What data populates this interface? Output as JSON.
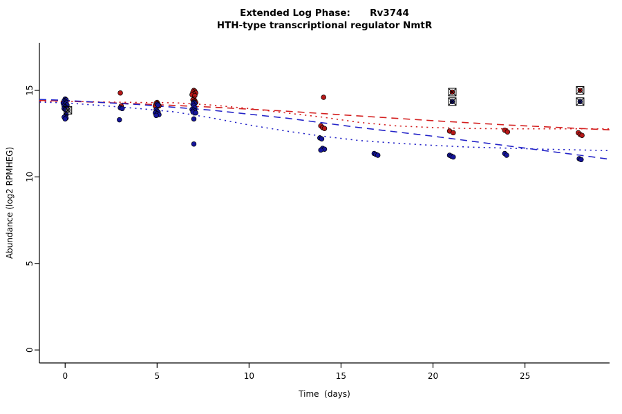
{
  "title": {
    "line1": "Extended Log Phase:      Rv3744",
    "line2": "HTH-type transcriptional regulator NmtR"
  },
  "chart_data": {
    "type": "scatter",
    "title": "Extended Log Phase:      Rv3744",
    "subtitle": "HTH-type transcriptional regulator NmtR",
    "xlabel": "Time  (days)",
    "ylabel": "Abundance  (log2 RPMHEG)",
    "xlim": [
      -1.4,
      29.6
    ],
    "ylim": [
      -0.75,
      17.75
    ],
    "xticks": [
      0,
      5,
      10,
      15,
      20,
      25
    ],
    "yticks": [
      0,
      5,
      10,
      15
    ],
    "grid": "off",
    "legend": "none",
    "series": [
      {
        "name": "red-condition",
        "color": "#b61818",
        "points": [
          [
            0.0,
            14.2
          ],
          [
            0.1,
            14.05
          ],
          [
            -0.05,
            13.95
          ],
          [
            0.05,
            13.9
          ],
          [
            3.0,
            14.85
          ],
          [
            3.05,
            14.1
          ],
          [
            5.0,
            14.3
          ],
          [
            4.95,
            14.25
          ],
          [
            5.05,
            14.2
          ],
          [
            5.0,
            14.15
          ],
          [
            5.1,
            14.1
          ],
          [
            4.9,
            14.1
          ],
          [
            7.0,
            15.0
          ],
          [
            7.05,
            14.95
          ],
          [
            6.95,
            14.9
          ],
          [
            7.1,
            14.85
          ],
          [
            7.0,
            14.8
          ],
          [
            6.9,
            14.75
          ],
          [
            7.05,
            14.7
          ],
          [
            7.0,
            14.5
          ],
          [
            6.95,
            14.45
          ],
          [
            7.05,
            14.4
          ],
          [
            7.0,
            14.35
          ],
          [
            7.1,
            14.3
          ],
          [
            14.05,
            14.6
          ],
          [
            13.9,
            12.95
          ],
          [
            14.0,
            12.85
          ],
          [
            14.1,
            12.8
          ],
          [
            20.9,
            12.65
          ],
          [
            21.1,
            12.55
          ],
          [
            23.9,
            12.7
          ],
          [
            24.05,
            12.6
          ],
          [
            27.9,
            12.55
          ],
          [
            28.0,
            12.45
          ],
          [
            28.1,
            12.4
          ]
        ]
      },
      {
        "name": "blue-condition",
        "color": "#15159b",
        "points": [
          [
            0.0,
            14.5
          ],
          [
            0.05,
            14.45
          ],
          [
            -0.05,
            14.4
          ],
          [
            0.0,
            14.35
          ],
          [
            0.05,
            14.3
          ],
          [
            -0.1,
            14.25
          ],
          [
            0.0,
            14.2
          ],
          [
            0.1,
            14.15
          ],
          [
            -0.05,
            14.1
          ],
          [
            0.0,
            14.05
          ],
          [
            0.05,
            14.0
          ],
          [
            -0.05,
            13.95
          ],
          [
            0.0,
            13.9
          ],
          [
            0.05,
            13.6
          ],
          [
            0.0,
            13.5
          ],
          [
            -0.05,
            13.45
          ],
          [
            0.05,
            13.4
          ],
          [
            0.0,
            13.35
          ],
          [
            3.0,
            14.0
          ],
          [
            3.1,
            13.95
          ],
          [
            2.95,
            13.3
          ],
          [
            5.0,
            14.2
          ],
          [
            5.05,
            14.15
          ],
          [
            4.95,
            13.9
          ],
          [
            5.0,
            13.8
          ],
          [
            5.05,
            13.75
          ],
          [
            4.9,
            13.7
          ],
          [
            5.0,
            13.65
          ],
          [
            5.1,
            13.6
          ],
          [
            4.95,
            13.55
          ],
          [
            7.0,
            14.3
          ],
          [
            7.05,
            14.25
          ],
          [
            6.95,
            14.2
          ],
          [
            7.0,
            14.1
          ],
          [
            7.05,
            14.0
          ],
          [
            6.9,
            13.9
          ],
          [
            7.0,
            13.85
          ],
          [
            7.05,
            13.8
          ],
          [
            6.95,
            13.75
          ],
          [
            7.1,
            13.7
          ],
          [
            7.0,
            13.35
          ],
          [
            7.0,
            11.9
          ],
          [
            13.85,
            12.25
          ],
          [
            13.95,
            12.2
          ],
          [
            14.0,
            11.65
          ],
          [
            14.1,
            11.6
          ],
          [
            13.9,
            11.55
          ],
          [
            16.8,
            11.35
          ],
          [
            16.9,
            11.3
          ],
          [
            17.0,
            11.25
          ],
          [
            20.9,
            11.25
          ],
          [
            21.0,
            11.2
          ],
          [
            21.1,
            11.15
          ],
          [
            23.9,
            11.35
          ],
          [
            24.0,
            11.25
          ],
          [
            27.95,
            11.05
          ],
          [
            28.05,
            11.0
          ]
        ]
      }
    ],
    "outliers": [
      {
        "x": 0.15,
        "y": 13.85,
        "color": "#666666"
      },
      {
        "x": 21.05,
        "y": 14.9,
        "color": "#b61818"
      },
      {
        "x": 21.05,
        "y": 14.35,
        "color": "#15157d"
      },
      {
        "x": 28.0,
        "y": 15.0,
        "color": "#b61818"
      },
      {
        "x": 28.0,
        "y": 14.35,
        "color": "#15157d"
      }
    ],
    "trend_lines": [
      {
        "name": "red-dashed-fit",
        "color": "#d42020",
        "style": "dashed",
        "points": [
          [
            -1.4,
            14.42
          ],
          [
            0,
            14.38
          ],
          [
            4,
            14.22
          ],
          [
            8,
            14.03
          ],
          [
            12,
            13.8
          ],
          [
            16,
            13.52
          ],
          [
            20,
            13.25
          ],
          [
            24,
            13.0
          ],
          [
            28,
            12.8
          ],
          [
            29.6,
            12.72
          ]
        ]
      },
      {
        "name": "red-dotted-fit",
        "color": "#d42020",
        "style": "dotted",
        "points": [
          [
            -1.4,
            14.38
          ],
          [
            0,
            14.37
          ],
          [
            2,
            14.33
          ],
          [
            4,
            14.3
          ],
          [
            6,
            14.28
          ],
          [
            8,
            14.15
          ],
          [
            10,
            13.95
          ],
          [
            12,
            13.7
          ],
          [
            14,
            13.45
          ],
          [
            16,
            13.15
          ],
          [
            18,
            12.95
          ],
          [
            20,
            12.85
          ],
          [
            22,
            12.8
          ],
          [
            24,
            12.78
          ],
          [
            26,
            12.78
          ],
          [
            28,
            12.78
          ],
          [
            29.6,
            12.78
          ]
        ]
      },
      {
        "name": "blue-dashed-fit",
        "color": "#2424c8",
        "style": "dashed",
        "points": [
          [
            -1.4,
            14.48
          ],
          [
            0,
            14.42
          ],
          [
            4,
            14.18
          ],
          [
            8,
            13.85
          ],
          [
            12,
            13.4
          ],
          [
            16,
            12.85
          ],
          [
            20,
            12.35
          ],
          [
            24,
            11.8
          ],
          [
            28,
            11.25
          ],
          [
            29.6,
            11.02
          ]
        ]
      },
      {
        "name": "blue-dotted-fit",
        "color": "#2424c8",
        "style": "dotted",
        "points": [
          [
            -1.4,
            14.32
          ],
          [
            0,
            14.28
          ],
          [
            2,
            14.12
          ],
          [
            4,
            13.95
          ],
          [
            6,
            13.75
          ],
          [
            8,
            13.4
          ],
          [
            10,
            13.0
          ],
          [
            12,
            12.65
          ],
          [
            14,
            12.35
          ],
          [
            16,
            12.1
          ],
          [
            18,
            11.95
          ],
          [
            20,
            11.82
          ],
          [
            22,
            11.72
          ],
          [
            24,
            11.66
          ],
          [
            26,
            11.6
          ],
          [
            28,
            11.56
          ],
          [
            29.6,
            11.52
          ]
        ]
      }
    ]
  }
}
